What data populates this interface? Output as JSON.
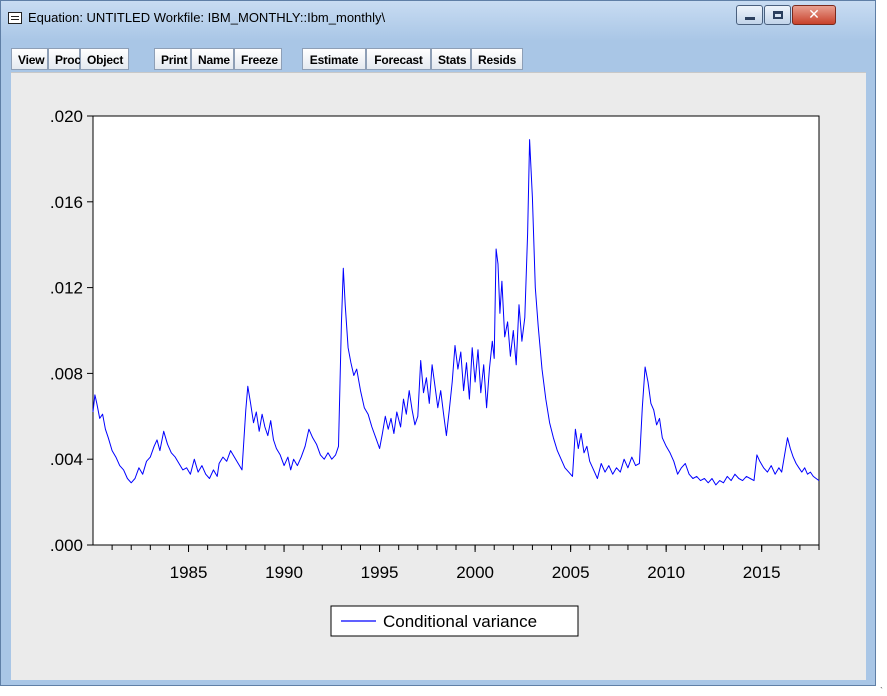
{
  "window": {
    "title": "Equation: UNTITLED   Workfile: IBM_MONTHLY::Ibm_monthly\\",
    "controls": [
      "minimize",
      "maximize",
      "close"
    ]
  },
  "toolbar": {
    "buttons": [
      "View",
      "Proc",
      "Object",
      "Print",
      "Name",
      "Freeze",
      "Estimate",
      "Forecast",
      "Stats",
      "Resids"
    ]
  },
  "chart_data": {
    "type": "line",
    "title": "",
    "xlabel": "",
    "ylabel": "",
    "x_range": [
      1980.0,
      2018.0
    ],
    "ylim": [
      0.0,
      0.02
    ],
    "y_ticks": [
      ".000",
      ".004",
      ".008",
      ".012",
      ".016",
      ".020"
    ],
    "x_ticks": [
      "1985",
      "1990",
      "1995",
      "2000",
      "2005",
      "2010",
      "2015"
    ],
    "grid": false,
    "legend": {
      "placement": "bottom-center",
      "entries": [
        "Conditional variance"
      ]
    },
    "series": [
      {
        "name": "Conditional variance",
        "color": "#0000ff",
        "points": [
          [
            1980.0,
            0.0062
          ],
          [
            1980.1,
            0.007
          ],
          [
            1980.2,
            0.0066
          ],
          [
            1980.35,
            0.0059
          ],
          [
            1980.5,
            0.0061
          ],
          [
            1980.65,
            0.0054
          ],
          [
            1980.8,
            0.005
          ],
          [
            1981.0,
            0.0044
          ],
          [
            1981.2,
            0.0041
          ],
          [
            1981.4,
            0.0037
          ],
          [
            1981.6,
            0.0035
          ],
          [
            1981.8,
            0.0031
          ],
          [
            1982.0,
            0.0029
          ],
          [
            1982.2,
            0.0031
          ],
          [
            1982.4,
            0.0036
          ],
          [
            1982.6,
            0.0033
          ],
          [
            1982.8,
            0.0039
          ],
          [
            1983.0,
            0.0041
          ],
          [
            1983.2,
            0.0046
          ],
          [
            1983.35,
            0.0049
          ],
          [
            1983.5,
            0.0044
          ],
          [
            1983.7,
            0.0053
          ],
          [
            1983.9,
            0.0047
          ],
          [
            1984.1,
            0.0043
          ],
          [
            1984.3,
            0.0041
          ],
          [
            1984.5,
            0.0038
          ],
          [
            1984.7,
            0.0035
          ],
          [
            1984.9,
            0.0036
          ],
          [
            1985.1,
            0.0033
          ],
          [
            1985.3,
            0.004
          ],
          [
            1985.5,
            0.0034
          ],
          [
            1985.7,
            0.0037
          ],
          [
            1985.9,
            0.0033
          ],
          [
            1986.1,
            0.0031
          ],
          [
            1986.3,
            0.0035
          ],
          [
            1986.5,
            0.0032
          ],
          [
            1986.6,
            0.0038
          ],
          [
            1986.8,
            0.0041
          ],
          [
            1987.0,
            0.0039
          ],
          [
            1987.2,
            0.0044
          ],
          [
            1987.4,
            0.0041
          ],
          [
            1987.6,
            0.0038
          ],
          [
            1987.8,
            0.0035
          ],
          [
            1988.0,
            0.0063
          ],
          [
            1988.1,
            0.0074
          ],
          [
            1988.25,
            0.0066
          ],
          [
            1988.4,
            0.0057
          ],
          [
            1988.55,
            0.0062
          ],
          [
            1988.7,
            0.0053
          ],
          [
            1988.85,
            0.0061
          ],
          [
            1989.0,
            0.0055
          ],
          [
            1989.15,
            0.0051
          ],
          [
            1989.3,
            0.0058
          ],
          [
            1989.45,
            0.0049
          ],
          [
            1989.6,
            0.0045
          ],
          [
            1989.8,
            0.0042
          ],
          [
            1990.0,
            0.0037
          ],
          [
            1990.2,
            0.0041
          ],
          [
            1990.35,
            0.0035
          ],
          [
            1990.5,
            0.004
          ],
          [
            1990.7,
            0.0037
          ],
          [
            1990.9,
            0.0041
          ],
          [
            1991.1,
            0.0046
          ],
          [
            1991.3,
            0.0054
          ],
          [
            1991.5,
            0.005
          ],
          [
            1991.7,
            0.0047
          ],
          [
            1991.9,
            0.0042
          ],
          [
            1992.1,
            0.004
          ],
          [
            1992.3,
            0.0043
          ],
          [
            1992.5,
            0.004
          ],
          [
            1992.7,
            0.0042
          ],
          [
            1992.85,
            0.0046
          ],
          [
            1993.0,
            0.0103
          ],
          [
            1993.1,
            0.0129
          ],
          [
            1993.2,
            0.0112
          ],
          [
            1993.35,
            0.0092
          ],
          [
            1993.5,
            0.0085
          ],
          [
            1993.65,
            0.0079
          ],
          [
            1993.8,
            0.0082
          ],
          [
            1994.0,
            0.0072
          ],
          [
            1994.2,
            0.0064
          ],
          [
            1994.4,
            0.0061
          ],
          [
            1994.6,
            0.0055
          ],
          [
            1994.8,
            0.005
          ],
          [
            1995.0,
            0.0045
          ],
          [
            1995.15,
            0.0052
          ],
          [
            1995.3,
            0.006
          ],
          [
            1995.45,
            0.0054
          ],
          [
            1995.6,
            0.0059
          ],
          [
            1995.75,
            0.0052
          ],
          [
            1995.9,
            0.0062
          ],
          [
            1996.1,
            0.0055
          ],
          [
            1996.25,
            0.0068
          ],
          [
            1996.4,
            0.0061
          ],
          [
            1996.55,
            0.0072
          ],
          [
            1996.7,
            0.0063
          ],
          [
            1996.85,
            0.0056
          ],
          [
            1997.0,
            0.006
          ],
          [
            1997.15,
            0.0086
          ],
          [
            1997.3,
            0.0071
          ],
          [
            1997.45,
            0.0078
          ],
          [
            1997.6,
            0.0066
          ],
          [
            1997.75,
            0.0084
          ],
          [
            1997.9,
            0.0074
          ],
          [
            1998.05,
            0.0064
          ],
          [
            1998.2,
            0.0072
          ],
          [
            1998.35,
            0.0061
          ],
          [
            1998.5,
            0.0051
          ],
          [
            1998.65,
            0.0063
          ],
          [
            1998.8,
            0.0076
          ],
          [
            1998.95,
            0.0093
          ],
          [
            1999.1,
            0.0082
          ],
          [
            1999.25,
            0.009
          ],
          [
            1999.4,
            0.0072
          ],
          [
            1999.55,
            0.0085
          ],
          [
            1999.7,
            0.0068
          ],
          [
            1999.85,
            0.0092
          ],
          [
            2000.0,
            0.0076
          ],
          [
            2000.15,
            0.0091
          ],
          [
            2000.3,
            0.0071
          ],
          [
            2000.45,
            0.0084
          ],
          [
            2000.6,
            0.0064
          ],
          [
            2000.75,
            0.0082
          ],
          [
            2000.9,
            0.0095
          ],
          [
            2001.0,
            0.0087
          ],
          [
            2001.1,
            0.0138
          ],
          [
            2001.2,
            0.0131
          ],
          [
            2001.3,
            0.0108
          ],
          [
            2001.4,
            0.0123
          ],
          [
            2001.55,
            0.0097
          ],
          [
            2001.7,
            0.0104
          ],
          [
            2001.85,
            0.0088
          ],
          [
            2002.0,
            0.01
          ],
          [
            2002.15,
            0.0084
          ],
          [
            2002.3,
            0.0112
          ],
          [
            2002.45,
            0.0095
          ],
          [
            2002.6,
            0.0106
          ],
          [
            2002.75,
            0.0145
          ],
          [
            2002.85,
            0.0189
          ],
          [
            2003.0,
            0.0162
          ],
          [
            2003.15,
            0.012
          ],
          [
            2003.3,
            0.0102
          ],
          [
            2003.5,
            0.0082
          ],
          [
            2003.7,
            0.0068
          ],
          [
            2003.9,
            0.0057
          ],
          [
            2004.1,
            0.005
          ],
          [
            2004.3,
            0.0044
          ],
          [
            2004.5,
            0.004
          ],
          [
            2004.7,
            0.0036
          ],
          [
            2004.9,
            0.0034
          ],
          [
            2005.1,
            0.0032
          ],
          [
            2005.25,
            0.0054
          ],
          [
            2005.4,
            0.0045
          ],
          [
            2005.55,
            0.0052
          ],
          [
            2005.7,
            0.0043
          ],
          [
            2005.85,
            0.0046
          ],
          [
            2006.0,
            0.0039
          ],
          [
            2006.2,
            0.0035
          ],
          [
            2006.4,
            0.0031
          ],
          [
            2006.6,
            0.0038
          ],
          [
            2006.8,
            0.0034
          ],
          [
            2007.0,
            0.0037
          ],
          [
            2007.2,
            0.0033
          ],
          [
            2007.4,
            0.0036
          ],
          [
            2007.6,
            0.0034
          ],
          [
            2007.8,
            0.004
          ],
          [
            2008.0,
            0.0036
          ],
          [
            2008.2,
            0.0041
          ],
          [
            2008.4,
            0.0037
          ],
          [
            2008.6,
            0.0038
          ],
          [
            2008.75,
            0.0064
          ],
          [
            2008.9,
            0.0083
          ],
          [
            2009.05,
            0.0076
          ],
          [
            2009.2,
            0.0066
          ],
          [
            2009.35,
            0.0063
          ],
          [
            2009.5,
            0.0056
          ],
          [
            2009.65,
            0.0059
          ],
          [
            2009.8,
            0.005
          ],
          [
            2010.0,
            0.0046
          ],
          [
            2010.2,
            0.0043
          ],
          [
            2010.4,
            0.0039
          ],
          [
            2010.6,
            0.0033
          ],
          [
            2010.8,
            0.0036
          ],
          [
            2011.0,
            0.0038
          ],
          [
            2011.2,
            0.0033
          ],
          [
            2011.4,
            0.0031
          ],
          [
            2011.6,
            0.0032
          ],
          [
            2011.8,
            0.003
          ],
          [
            2012.0,
            0.0031
          ],
          [
            2012.2,
            0.0029
          ],
          [
            2012.4,
            0.0031
          ],
          [
            2012.6,
            0.0028
          ],
          [
            2012.8,
            0.003
          ],
          [
            2013.0,
            0.0029
          ],
          [
            2013.2,
            0.0032
          ],
          [
            2013.4,
            0.003
          ],
          [
            2013.6,
            0.0033
          ],
          [
            2013.8,
            0.0031
          ],
          [
            2014.0,
            0.003
          ],
          [
            2014.2,
            0.0032
          ],
          [
            2014.4,
            0.0031
          ],
          [
            2014.6,
            0.003
          ],
          [
            2014.75,
            0.0042
          ],
          [
            2014.9,
            0.0039
          ],
          [
            2015.1,
            0.0036
          ],
          [
            2015.3,
            0.0034
          ],
          [
            2015.5,
            0.0037
          ],
          [
            2015.7,
            0.0033
          ],
          [
            2015.9,
            0.0036
          ],
          [
            2016.05,
            0.0034
          ],
          [
            2016.2,
            0.0042
          ],
          [
            2016.35,
            0.005
          ],
          [
            2016.5,
            0.0045
          ],
          [
            2016.65,
            0.0041
          ],
          [
            2016.8,
            0.0038
          ],
          [
            2016.95,
            0.0036
          ],
          [
            2017.1,
            0.0034
          ],
          [
            2017.25,
            0.0036
          ],
          [
            2017.4,
            0.0033
          ],
          [
            2017.55,
            0.0034
          ],
          [
            2017.7,
            0.0032
          ],
          [
            2017.85,
            0.0031
          ],
          [
            2018.0,
            0.003
          ]
        ]
      }
    ]
  }
}
